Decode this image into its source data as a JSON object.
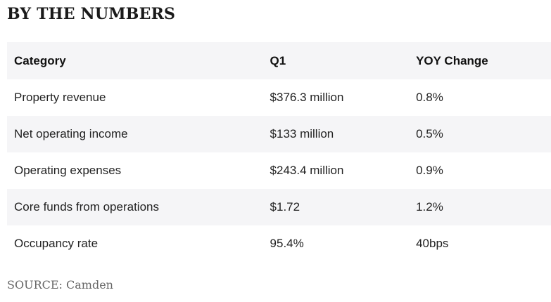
{
  "title": "BY THE NUMBERS",
  "table": {
    "headers": [
      "Category",
      "Q1",
      "YOY Change"
    ],
    "rows": [
      [
        "Property revenue",
        "$376.3 million",
        "0.8%"
      ],
      [
        "Net operating income",
        "$133 million",
        "0.5%"
      ],
      [
        "Operating expenses",
        "$243.4 million",
        "0.9%"
      ],
      [
        "Core funds from operations",
        "$1.72",
        "1.2%"
      ],
      [
        "Occupancy rate",
        "95.4%",
        "40bps"
      ]
    ]
  },
  "source": "SOURCE: Camden",
  "colors": {
    "shaded_row": "#f5f5f7",
    "text": "#222222",
    "source_text": "#666666"
  }
}
